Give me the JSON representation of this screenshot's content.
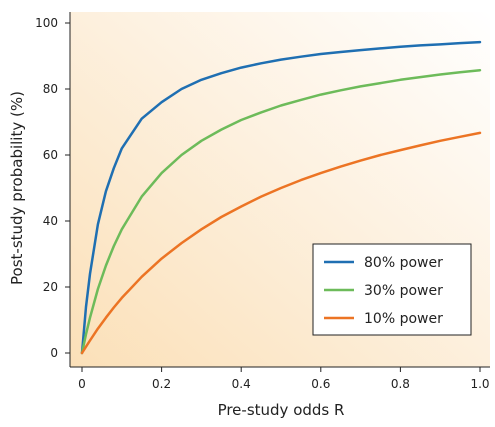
{
  "chart_data": {
    "type": "line",
    "title": "",
    "xlabel": "Pre-study odds R",
    "ylabel": "Post-study probability (%)",
    "xlim": [
      0,
      1.0
    ],
    "ylim": [
      0,
      100
    ],
    "xticks": [
      "0",
      "0.2",
      "0.4",
      "0.6",
      "0.8",
      "1.0"
    ],
    "yticks": [
      "0",
      "20",
      "40",
      "60",
      "80",
      "100"
    ],
    "legend_position": "bottom-right",
    "background": "warm gradient, light orange toward lower-left fading to white toward upper-right",
    "x": [
      0,
      0.01,
      0.02,
      0.04,
      0.06,
      0.08,
      0.1,
      0.15,
      0.2,
      0.25,
      0.3,
      0.35,
      0.4,
      0.45,
      0.5,
      0.55,
      0.6,
      0.65,
      0.7,
      0.75,
      0.8,
      0.85,
      0.9,
      0.95,
      1.0
    ],
    "series": [
      {
        "name": "80% power",
        "color": "#1f6fb2",
        "values": [
          0,
          14,
          24,
          39,
          49,
          56,
          62,
          71,
          76,
          80,
          82.8,
          84.8,
          86.5,
          87.8,
          88.9,
          89.8,
          90.6,
          91.2,
          91.8,
          92.3,
          92.8,
          93.2,
          93.5,
          93.9,
          94.2
        ]
      },
      {
        "name": "30% power",
        "color": "#6dbb5a",
        "values": [
          0,
          5.7,
          10.7,
          19.4,
          26.5,
          32.4,
          37.5,
          47.4,
          54.5,
          60,
          64.3,
          67.7,
          70.6,
          72.9,
          75,
          76.7,
          78.3,
          79.6,
          80.8,
          81.8,
          82.8,
          83.6,
          84.4,
          85.1,
          85.7
        ]
      },
      {
        "name": "10% power",
        "color": "#ec7424",
        "values": [
          0,
          1.9,
          3.8,
          7.4,
          10.7,
          13.8,
          16.7,
          23.1,
          28.6,
          33.3,
          37.5,
          41.2,
          44.4,
          47.4,
          50,
          52.4,
          54.5,
          56.5,
          58.3,
          60,
          61.5,
          62.9,
          64.3,
          65.5,
          66.7
        ]
      }
    ]
  }
}
